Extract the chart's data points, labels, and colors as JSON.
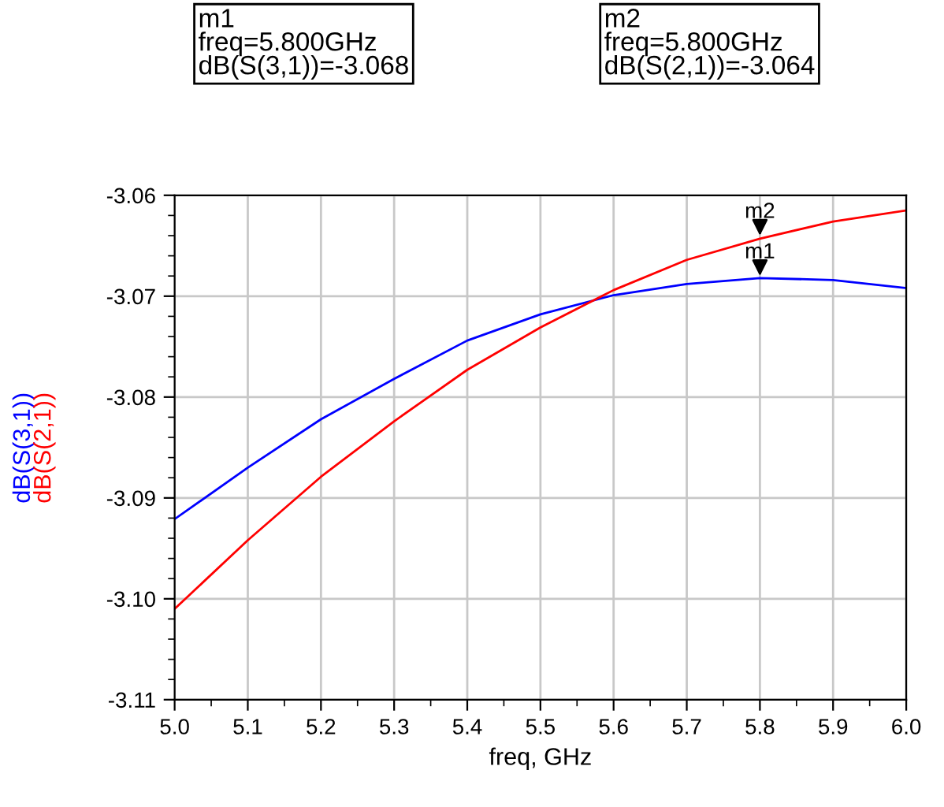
{
  "chart_data": {
    "type": "line",
    "xlabel": "freq, GHz",
    "x": [
      5.0,
      5.1,
      5.2,
      5.3,
      5.4,
      5.5,
      5.6,
      5.7,
      5.8,
      5.9,
      6.0
    ],
    "series": [
      {
        "name": "dB(S(3,1))",
        "color": "#0000ff",
        "values": [
          -3.0921,
          -3.087,
          -3.0822,
          -3.0782,
          -3.0744,
          -3.0718,
          -3.0699,
          -3.0688,
          -3.0682,
          -3.0684,
          -3.0692
        ]
      },
      {
        "name": "dB(S(2,1))",
        "color": "#ff0000",
        "values": [
          -3.101,
          -3.0942,
          -3.0879,
          -3.0824,
          -3.0773,
          -3.0731,
          -3.0694,
          -3.0664,
          -3.0643,
          -3.0626,
          -3.0615
        ]
      }
    ],
    "xlim": [
      5.0,
      6.0
    ],
    "ylim": [
      -3.11,
      -3.06
    ],
    "xticks": [
      {
        "value": 5.0,
        "label": "5.0"
      },
      5.1,
      5.2,
      5.3,
      5.4,
      5.5,
      5.6,
      5.7,
      5.8,
      5.9,
      {
        "value": 6.0,
        "label": "6.0"
      }
    ],
    "yticks": [
      -3.11,
      {
        "value": -3.1,
        "label": "-3.10"
      },
      -3.09,
      -3.08,
      -3.07,
      -3.06
    ],
    "grid": true,
    "legend": false,
    "marker": "none",
    "line_style": "solid",
    "annotations": [
      "m1\nfreq=5.800GHz\ndB(S(3,1))=-3.068",
      "m2\nfreq=5.800GHz\ndB(S(2,1))=-3.064",
      {
        "text": "m1",
        "x": 5.8,
        "y": -3.068
      },
      {
        "text": "m2",
        "x": 5.8,
        "y": -3.064
      }
    ]
  }
}
